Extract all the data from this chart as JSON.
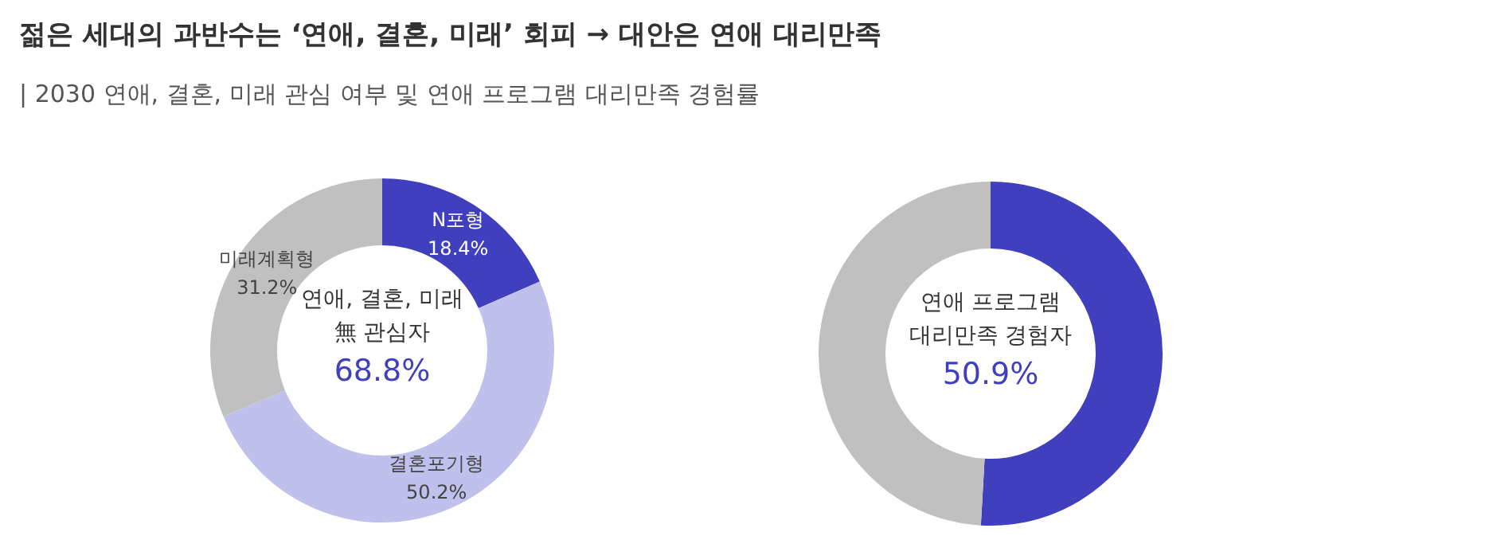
{
  "chart_data": [
    {
      "type": "donut",
      "title": "젊은 세대의 과반수는 ‘연애, 결혼, 미래’ 회피 → 대안은 연애 대리만족",
      "subtitle": "| 2030 연애, 결혼, 미래 관심 여부 및 연애 프로그램 대리만족 경험률",
      "categories": [
        "N포형",
        "결혼포기형",
        "미래계획형"
      ],
      "values": [
        18.4,
        50.2,
        31.2
      ],
      "colors": [
        "#4040bf",
        "#c0c0ec",
        "#c0c0c0"
      ],
      "value_labels": [
        "18.4%",
        "50.2%",
        "31.2%"
      ],
      "annotations": [
        "연애, 결혼, 미래",
        "無 관심자",
        "68.8%"
      ]
    },
    {
      "type": "donut",
      "categories": [
        null,
        null
      ],
      "values": [
        50.9,
        49.1
      ],
      "colors": [
        "#4040bf",
        "#c0c0c0"
      ],
      "annotations": [
        "연애 프로그램",
        "대리만족 경험자",
        "50.9%"
      ]
    }
  ]
}
